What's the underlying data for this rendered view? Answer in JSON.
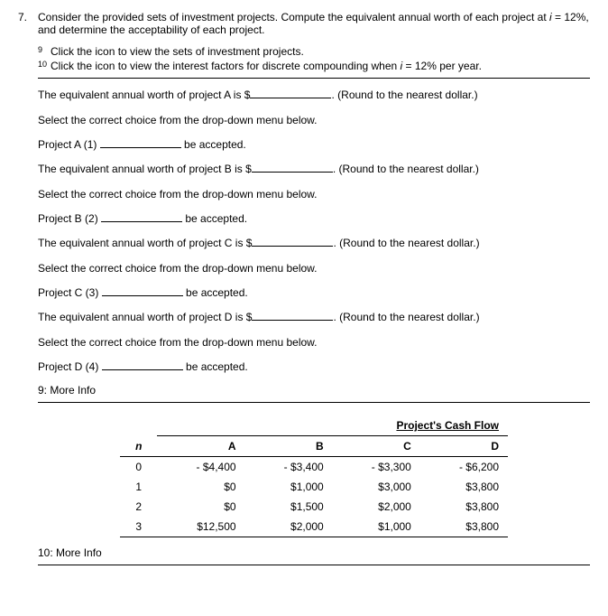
{
  "question_number": "7.",
  "prompt_line1": "Consider the provided sets of investment projects. Compute the equivalent annual worth of each project at ",
  "prompt_i": "i",
  "prompt_line1b": " = 12%, and determine the acceptability of each project.",
  "footnote9_sup": "9",
  "footnote9_text": " Click the icon to view the sets of investment projects.",
  "footnote10_sup": "10",
  "footnote10_text": " Click the icon to view the interest factors for discrete compounding when ",
  "footnote10_i": "i",
  "footnote10_text2": " = 12% per year.",
  "projA_eq": "The equivalent annual worth of project A is $",
  "round_text": ". (Round to the nearest dollar.)",
  "select_text": "Select the correct choice from the drop-down menu below.",
  "projA_label": "Project A  (1) ",
  "accepted": " be accepted.",
  "projB_eq": "The equivalent annual worth of project B is $",
  "projB_label": "Project B  (2) ",
  "projC_eq": "The equivalent annual worth of project C is $",
  "projC_label": "Project C  (3) ",
  "projD_eq": "The equivalent annual worth of project D is $",
  "projD_label": "Project D  (4) ",
  "more9": "9: More Info",
  "more10": "10: More Info",
  "table": {
    "title": "Project's Cash Flow",
    "ncol": "n",
    "cols": [
      "A",
      "B",
      "C",
      "D"
    ],
    "rows": [
      {
        "n": "0",
        "A": "- $4,400",
        "B": "- $3,400",
        "C": "- $3,300",
        "D": "- $6,200"
      },
      {
        "n": "1",
        "A": "$0",
        "B": "$1,000",
        "C": "$3,000",
        "D": "$3,800"
      },
      {
        "n": "2",
        "A": "$0",
        "B": "$1,500",
        "C": "$2,000",
        "D": "$3,800"
      },
      {
        "n": "3",
        "A": "$12,500",
        "B": "$2,000",
        "C": "$1,000",
        "D": "$3,800"
      }
    ]
  }
}
